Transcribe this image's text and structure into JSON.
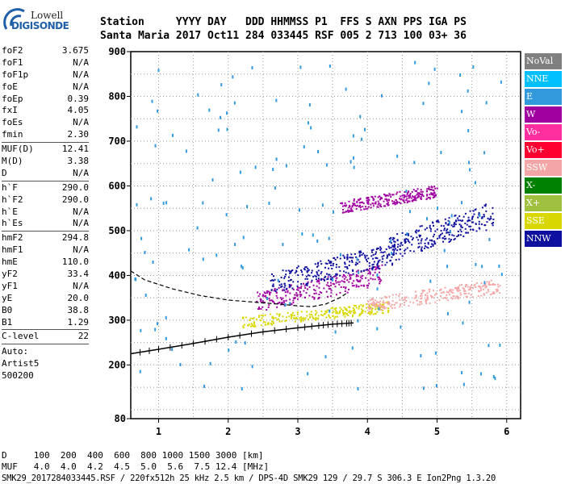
{
  "logo": {
    "line1": "Lowell",
    "line2": "DIGISONDE"
  },
  "header": {
    "line1": "Station     YYYY DAY   DDD HHMMSS P1  FFS S AXN PPS IGA PS",
    "line2": "Santa Maria 2017 Oct11 284 033445 RSF 005 2 713 100 03+ 36"
  },
  "params": [
    [
      {
        "k": "foF2",
        "v": "3.675"
      },
      {
        "k": "foF1",
        "v": "N/A"
      },
      {
        "k": "foF1p",
        "v": "N/A"
      },
      {
        "k": "foE",
        "v": "N/A"
      },
      {
        "k": "foEp",
        "v": "0.39"
      },
      {
        "k": "fxI",
        "v": "4.05"
      },
      {
        "k": "foEs",
        "v": "N/A"
      },
      {
        "k": "fmin",
        "v": "2.30"
      }
    ],
    [
      {
        "k": "MUF(D)",
        "v": "12.41"
      },
      {
        "k": "M(D)",
        "v": "3.38"
      },
      {
        "k": "D",
        "v": "N/A"
      }
    ],
    [
      {
        "k": "h`F",
        "v": "290.0"
      },
      {
        "k": "h`F2",
        "v": "290.0"
      },
      {
        "k": "h`E",
        "v": "N/A"
      },
      {
        "k": "h`Es",
        "v": "N/A"
      }
    ],
    [
      {
        "k": "hmF2",
        "v": "294.8"
      },
      {
        "k": "hmF1",
        "v": "N/A"
      },
      {
        "k": "hmE",
        "v": "110.0"
      },
      {
        "k": "yF2",
        "v": "33.4"
      },
      {
        "k": "yF1",
        "v": "N/A"
      },
      {
        "k": "yE",
        "v": "20.0"
      },
      {
        "k": "B0",
        "v": "38.8"
      },
      {
        "k": "B1",
        "v": "1.29"
      }
    ],
    [
      {
        "k": "C-level",
        "v": "22"
      }
    ]
  ],
  "auto": {
    "line1": "Auto:",
    "line2": "Artist5",
    "line3": "500200"
  },
  "legend": [
    {
      "label": "NoVal",
      "bg": "#808080",
      "fg": "#ffffff"
    },
    {
      "label": "NNE",
      "bg": "#00c0ff",
      "fg": "#ffffff"
    },
    {
      "label": "E",
      "bg": "#3399dd",
      "fg": "#ffffff"
    },
    {
      "label": "W",
      "bg": "#a000a0",
      "fg": "#ffffff"
    },
    {
      "label": "Vo-",
      "bg": "#ff2f9f",
      "fg": "#ffffff"
    },
    {
      "label": "Vo+",
      "bg": "#ff0030",
      "fg": "#ffffff"
    },
    {
      "label": "SSW",
      "bg": "#f4a6a6",
      "fg": "#ffffff"
    },
    {
      "label": "X-",
      "bg": "#008000",
      "fg": "#ffffff"
    },
    {
      "label": "X+",
      "bg": "#a0c040",
      "fg": "#ffffff"
    },
    {
      "label": "SSE",
      "bg": "#d8d800",
      "fg": "#ffffff"
    },
    {
      "label": "NNW",
      "bg": "#1010a0",
      "fg": "#ffffff"
    }
  ],
  "footer": {
    "line1": "D     100  200  400  600  800 1000 1500 3000 [km]",
    "line2": "MUF   4.0  4.0  4.2  4.5  5.0  5.6  7.5 12.4 [MHz]",
    "line3": "SMK29_2017284033445.RSF / 220fx512h 25 kHz 2.5 km / DPS-4D SMK29 129 / 29.7 S 306.3 E Ion2Png 1.3.20"
  },
  "chart_data": {
    "type": "scatter",
    "xlim": [
      0.6,
      6.2
    ],
    "ylim": [
      80,
      900
    ],
    "xticks": [
      "1",
      "2",
      "3",
      "4",
      "5",
      "6"
    ],
    "yticks": [
      "900",
      "800",
      "700",
      "600",
      "500",
      "400",
      "300",
      "200",
      "80"
    ],
    "grid": true,
    "profile_curve": {
      "x": [
        0.6,
        1.0,
        1.5,
        2.0,
        2.5,
        3.0,
        3.3,
        3.5,
        3.7,
        3.8
      ],
      "y": [
        225,
        235,
        248,
        262,
        274,
        283,
        288,
        291,
        293,
        294
      ]
    },
    "virtual_height_trace": {
      "x": [
        0.6,
        0.8,
        1.2,
        1.6,
        2.0,
        2.4,
        2.8,
        3.0,
        3.2,
        3.4,
        3.6,
        3.7
      ],
      "y": [
        410,
        390,
        370,
        355,
        345,
        340,
        335,
        332,
        330,
        336,
        350,
        360
      ]
    },
    "echo_clusters": [
      {
        "series": "SSE",
        "x": [
          2.2,
          4.3
        ],
        "y": [
          285,
          340
        ]
      },
      {
        "series": "SSW",
        "x": [
          4.0,
          5.9
        ],
        "y": [
          320,
          390
        ]
      },
      {
        "series": "W",
        "x": [
          2.4,
          4.2
        ],
        "y": [
          320,
          420
        ]
      },
      {
        "series": "NNW",
        "x": [
          2.6,
          4.4
        ],
        "y": [
          360,
          470
        ]
      },
      {
        "series": "NNW",
        "x": [
          4.3,
          5.8
        ],
        "y": [
          430,
          560
        ]
      },
      {
        "series": "W",
        "x": [
          3.6,
          5.0
        ],
        "y": [
          540,
          600
        ]
      },
      {
        "series": "E",
        "x": [
          0.6,
          6.0
        ],
        "y": [
          150,
          880
        ]
      }
    ]
  }
}
